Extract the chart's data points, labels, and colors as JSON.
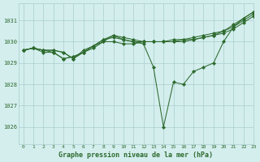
{
  "title": "Graphe pression niveau de la mer (hPa)",
  "bg_color": "#d4eeee",
  "grid_color": "#aacccc",
  "line_color": "#2d6a2d",
  "xlim": [
    -0.5,
    23
  ],
  "ylim": [
    1025.2,
    1031.8
  ],
  "yticks": [
    1026,
    1027,
    1028,
    1029,
    1030,
    1031
  ],
  "xticks": [
    0,
    1,
    2,
    3,
    4,
    5,
    6,
    7,
    8,
    9,
    10,
    11,
    12,
    13,
    14,
    15,
    16,
    17,
    18,
    19,
    20,
    21,
    22,
    23
  ],
  "series": [
    [
      1029.6,
      1029.7,
      1029.6,
      1029.6,
      1029.5,
      1029.2,
      1029.5,
      1029.7,
      1030.0,
      1030.3,
      1030.1,
      1030.0,
      1029.9,
      1028.8,
      1026.0,
      1028.1,
      1028.0,
      1028.6,
      1028.8,
      1029.0,
      1030.0,
      1030.7,
      1031.1,
      1031.4
    ],
    [
      1029.6,
      1029.7,
      1029.6,
      1029.6,
      1029.5,
      1029.2,
      1029.6,
      1029.8,
      1030.0,
      1030.0,
      1029.9,
      1029.9,
      1030.0,
      1030.0,
      1030.0,
      1030.0,
      1030.0,
      1030.1,
      1030.2,
      1030.3,
      1030.4,
      1030.6,
      1030.9,
      1031.2
    ],
    [
      1029.6,
      1029.7,
      1029.6,
      1029.5,
      1029.2,
      1029.3,
      1029.5,
      1029.8,
      1030.1,
      1030.2,
      1030.1,
      1030.0,
      1030.0,
      1030.0,
      1030.0,
      1030.1,
      1030.1,
      1030.2,
      1030.3,
      1030.4,
      1030.5,
      1030.7,
      1031.0,
      1031.3
    ],
    [
      1029.6,
      1029.7,
      1029.5,
      1029.5,
      1029.2,
      1029.3,
      1029.5,
      1029.8,
      1030.1,
      1030.3,
      1030.2,
      1030.1,
      1030.0,
      1030.0,
      1030.0,
      1030.0,
      1030.1,
      1030.1,
      1030.2,
      1030.3,
      1030.5,
      1030.8,
      1031.1,
      1031.4
    ]
  ],
  "xlabel_fontsize": 6.0,
  "xtick_fontsize": 4.5,
  "ytick_fontsize": 5.0
}
